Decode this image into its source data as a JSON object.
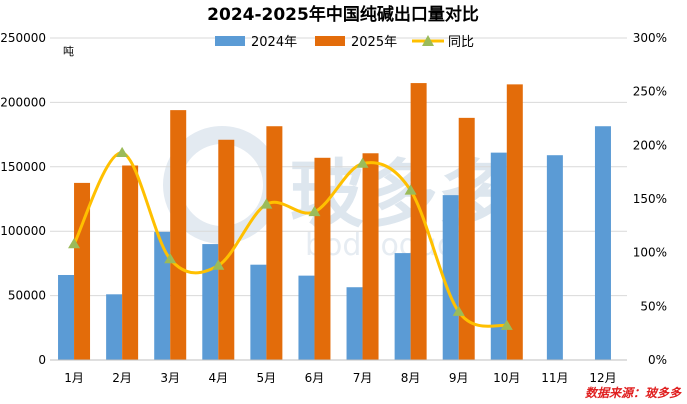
{
  "chart_data": {
    "type": "bar",
    "title": "2024-2025年中国纯碱出口量对比",
    "unit_label": "吨",
    "categories": [
      "1月",
      "2月",
      "3月",
      "4月",
      "5月",
      "6月",
      "7月",
      "8月",
      "9月",
      "10月",
      "11月",
      "12月"
    ],
    "series": [
      {
        "name": "2024年",
        "type": "bar",
        "axis": "left",
        "color": "#5b9bd5",
        "values": [
          66000,
          51000,
          99500,
          90000,
          74000,
          65500,
          56500,
          83000,
          128000,
          161000,
          159000,
          181500
        ]
      },
      {
        "name": "2025年",
        "type": "bar",
        "axis": "left",
        "color": "#e36c0a",
        "values": [
          137500,
          151000,
          194000,
          171000,
          181500,
          157000,
          160500,
          215000,
          188000,
          214000,
          null,
          null
        ]
      },
      {
        "name": "同比",
        "type": "line",
        "axis": "right",
        "color": "#ffc000",
        "marker_color": "#9bbb59",
        "values": [
          1.08,
          1.93,
          0.94,
          0.88,
          1.45,
          1.38,
          1.83,
          1.58,
          0.45,
          0.32,
          null,
          null
        ]
      }
    ],
    "y_left": {
      "min": 0,
      "max": 250000,
      "ticks": [
        "0",
        "50000",
        "100000",
        "150000",
        "200000",
        "250000"
      ]
    },
    "y_right": {
      "min": 0,
      "max": 3.0,
      "ticks": [
        "0%",
        "50%",
        "100%",
        "150%",
        "200%",
        "250%",
        "300%"
      ]
    },
    "legend_position": "top",
    "grid": true
  },
  "source_label": "数据来源：玻多多",
  "watermark": {
    "text": "玻多多",
    "subtext": "boduoduo"
  }
}
